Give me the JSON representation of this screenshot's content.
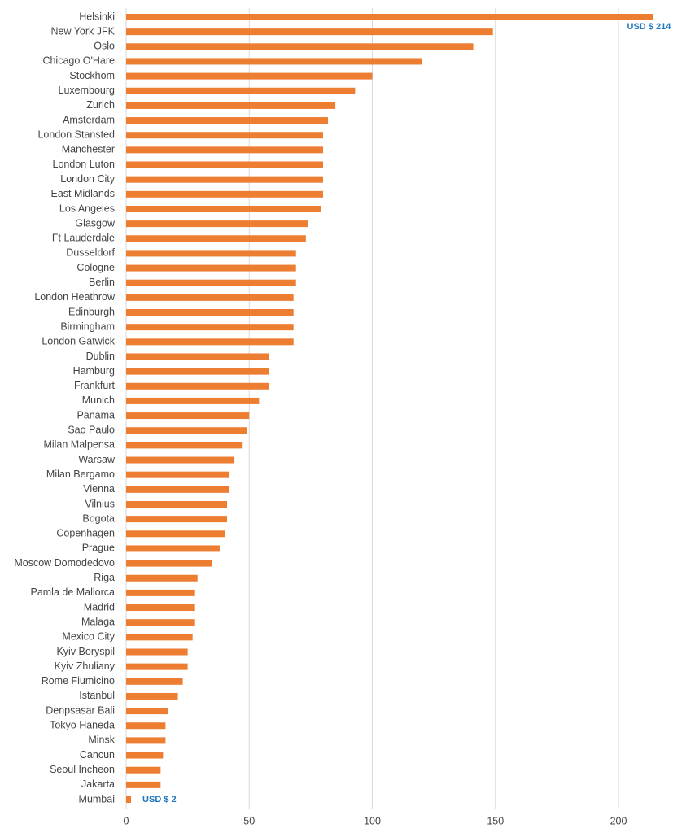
{
  "chart_data": {
    "type": "barh",
    "categories": [
      "Helsinki",
      "New York JFK",
      "Oslo",
      "Chicago O'Hare",
      "Stockhom",
      "Luxembourg",
      "Zurich",
      "Amsterdam",
      "London Stansted",
      "Manchester",
      "London Luton",
      "London City",
      "East Midlands",
      "Los Angeles",
      "Glasgow",
      "Ft Lauderdale",
      "Dusseldorf",
      "Cologne",
      "Berlin",
      "London Heathrow",
      "Edinburgh",
      "Birmingham",
      "London Gatwick",
      "Dublin",
      "Hamburg",
      "Frankfurt",
      "Munich",
      "Panama",
      "Sao Paulo",
      "Milan Malpensa",
      "Warsaw",
      "Milan Bergamo",
      "Vienna",
      "Vilnius",
      "Bogota",
      "Copenhagen",
      "Prague",
      "Moscow Domodedovo",
      "Riga",
      "Pamla de Mallorca",
      "Madrid",
      "Malaga",
      "Mexico City",
      "Kyiv Boryspil",
      "Kyiv Zhuliany",
      "Rome Fiumicino",
      "Istanbul",
      "Denpsasar Bali",
      "Tokyo Haneda",
      "Minsk",
      "Cancun",
      "Seoul Incheon",
      "Jakarta",
      "Mumbai"
    ],
    "values": [
      214,
      149,
      141,
      120,
      100,
      93,
      85,
      82,
      80,
      80,
      80,
      80,
      80,
      79,
      74,
      73,
      69,
      69,
      69,
      68,
      68,
      68,
      68,
      58,
      58,
      58,
      54,
      50,
      49,
      47,
      44,
      42,
      42,
      41,
      41,
      40,
      38,
      35,
      29,
      28,
      28,
      28,
      27,
      25,
      25,
      23,
      21,
      17,
      16,
      16,
      15,
      14,
      14,
      2
    ],
    "value_labels": [
      "USD $ 214",
      null,
      null,
      null,
      null,
      null,
      null,
      null,
      null,
      null,
      null,
      null,
      null,
      null,
      null,
      null,
      null,
      null,
      null,
      null,
      null,
      null,
      null,
      null,
      null,
      null,
      null,
      null,
      null,
      null,
      null,
      null,
      null,
      null,
      null,
      null,
      null,
      null,
      null,
      null,
      null,
      null,
      null,
      null,
      null,
      null,
      null,
      null,
      null,
      null,
      null,
      null,
      null,
      "USD $ 2"
    ],
    "color": "#ed7d31",
    "value_label_color": "#1f78c1",
    "xlim": [
      0,
      200
    ],
    "xticks": [
      0,
      50,
      100,
      150,
      200
    ],
    "grid": true
  }
}
